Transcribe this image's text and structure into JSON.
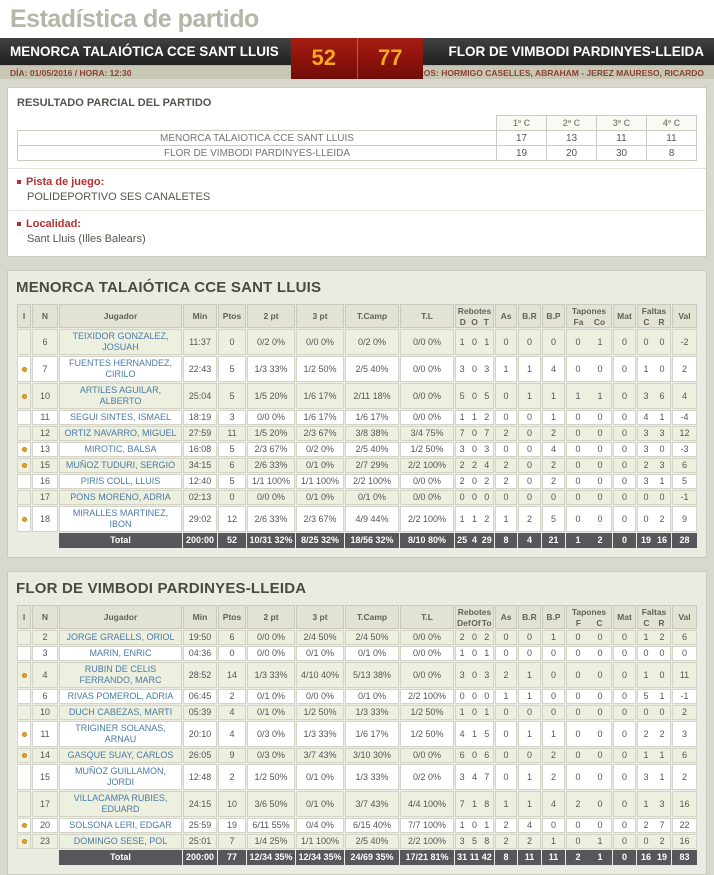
{
  "page_title": "Estadística de partido",
  "colors": {
    "score_box_bg": "#8c120c",
    "score_text": "#f4a71f",
    "accent_red": "#b53030",
    "player_link_blue": "#4a7ba6",
    "total_row_bg": "#57575b",
    "starter_dot": "#f0a21d"
  },
  "scoreboard": {
    "home_team": "MENORCA TALAIÓTICA CCE SANT LLUIS",
    "home_score": "52",
    "away_score": "77",
    "away_team": "FLOR DE VIMBODI PARDINYES-LLEIDA"
  },
  "meta": {
    "datetime": "DÍA: 01/05/2016 / HORA: 12:30",
    "referees": "ÁRBITROS: HORMIGO CASELLES, ABRAHAM - JEREZ MAURESO, RICARDO"
  },
  "partials": {
    "title": "RESULTADO PARCIAL DEL PARTIDO",
    "quarter_headers": [
      "1º C",
      "2º C",
      "3º C",
      "4º C"
    ],
    "rows": [
      {
        "team": "MENORCA TALAIOTICA CCE SANT LLUIS",
        "quarters": [
          "17",
          "13",
          "11",
          "11"
        ]
      },
      {
        "team": "FLOR DE VIMBODI PARDINYES-LLEIDA",
        "quarters": [
          "19",
          "20",
          "30",
          "8"
        ]
      }
    ]
  },
  "venue": {
    "label": "Pista de juego:",
    "value": "POLIDEPORTIVO SES CANALETES"
  },
  "locality": {
    "label": "Localidad:",
    "value": "Sant Lluis (Illes Balears)"
  },
  "team1": {
    "title": "MENORCA TALAIÓTICA CCE SANT LLUIS",
    "headers": {
      "i": "I",
      "n": "N",
      "player": "Jugador",
      "min": "Min",
      "ptos": "Ptos",
      "p2": "2 pt",
      "p3": "3 pt",
      "tcamp": "T.Camp",
      "tl": "T.L",
      "reb": "Rebotes",
      "reb_sub": [
        "D",
        "O",
        "T"
      ],
      "as": "As",
      "br": "B.R",
      "bp": "B.P",
      "tap": "Tapones",
      "tap_sub": [
        "Fa",
        "Co"
      ],
      "mat": "Mat",
      "fal": "Faltas",
      "fal_sub": [
        "C",
        "R"
      ],
      "val": "Val"
    },
    "rows": [
      {
        "starter": false,
        "n": "6",
        "name": "TEIXIDOR GONZALEZ, JOSUAH",
        "min": "11:37",
        "ptos": "0",
        "p2": "0/2 0%",
        "p3": "0/0 0%",
        "tc": "0/2 0%",
        "tl": "0/0 0%",
        "rd": "1",
        "ro": "0",
        "rt": "1",
        "as": "0",
        "br": "0",
        "bp": "0",
        "tf": "0",
        "tco": "1",
        "mat": "0",
        "fc": "0",
        "fr": "0",
        "val": "-2"
      },
      {
        "starter": true,
        "n": "7",
        "name": "FUENTES HERNANDEZ, CIRILO",
        "min": "22:43",
        "ptos": "5",
        "p2": "1/3 33%",
        "p3": "1/2 50%",
        "tc": "2/5 40%",
        "tl": "0/0 0%",
        "rd": "3",
        "ro": "0",
        "rt": "3",
        "as": "1",
        "br": "1",
        "bp": "4",
        "tf": "0",
        "tco": "0",
        "mat": "0",
        "fc": "1",
        "fr": "0",
        "val": "2"
      },
      {
        "starter": true,
        "n": "10",
        "name": "ARTILES AGUILAR, ALBERTO",
        "min": "25:04",
        "ptos": "5",
        "p2": "1/5 20%",
        "p3": "1/6 17%",
        "tc": "2/11 18%",
        "tl": "0/0 0%",
        "rd": "5",
        "ro": "0",
        "rt": "5",
        "as": "0",
        "br": "1",
        "bp": "1",
        "tf": "1",
        "tco": "1",
        "mat": "0",
        "fc": "3",
        "fr": "6",
        "val": "4"
      },
      {
        "starter": false,
        "n": "11",
        "name": "SEGUI SINTES, ISMAEL",
        "min": "18:19",
        "ptos": "3",
        "p2": "0/0 0%",
        "p3": "1/6 17%",
        "tc": "1/6 17%",
        "tl": "0/0 0%",
        "rd": "1",
        "ro": "1",
        "rt": "2",
        "as": "0",
        "br": "0",
        "bp": "1",
        "tf": "0",
        "tco": "0",
        "mat": "0",
        "fc": "4",
        "fr": "1",
        "val": "-4"
      },
      {
        "starter": false,
        "n": "12",
        "name": "ORTIZ NAVARRO, MIGUEL",
        "min": "27:59",
        "ptos": "11",
        "p2": "1/5 20%",
        "p3": "2/3 67%",
        "tc": "3/8 38%",
        "tl": "3/4 75%",
        "rd": "7",
        "ro": "0",
        "rt": "7",
        "as": "2",
        "br": "0",
        "bp": "2",
        "tf": "0",
        "tco": "0",
        "mat": "0",
        "fc": "3",
        "fr": "3",
        "val": "12"
      },
      {
        "starter": true,
        "n": "13",
        "name": "MIROTIC, BALSA",
        "min": "16:08",
        "ptos": "5",
        "p2": "2/3 67%",
        "p3": "0/2 0%",
        "tc": "2/5 40%",
        "tl": "1/2 50%",
        "rd": "3",
        "ro": "0",
        "rt": "3",
        "as": "0",
        "br": "0",
        "bp": "4",
        "tf": "0",
        "tco": "0",
        "mat": "0",
        "fc": "3",
        "fr": "0",
        "val": "-3"
      },
      {
        "starter": true,
        "n": "15",
        "name": "MUÑOZ TUDURI, SERGIO",
        "min": "34:15",
        "ptos": "6",
        "p2": "2/6 33%",
        "p3": "0/1 0%",
        "tc": "2/7 29%",
        "tl": "2/2 100%",
        "rd": "2",
        "ro": "2",
        "rt": "4",
        "as": "2",
        "br": "0",
        "bp": "2",
        "tf": "0",
        "tco": "0",
        "mat": "0",
        "fc": "2",
        "fr": "3",
        "val": "6"
      },
      {
        "starter": false,
        "n": "16",
        "name": "PIRIS COLL, LLUIS",
        "min": "12:40",
        "ptos": "5",
        "p2": "1/1 100%",
        "p3": "1/1 100%",
        "tc": "2/2 100%",
        "tl": "0/0 0%",
        "rd": "2",
        "ro": "0",
        "rt": "2",
        "as": "2",
        "br": "0",
        "bp": "2",
        "tf": "0",
        "tco": "0",
        "mat": "0",
        "fc": "3",
        "fr": "1",
        "val": "5"
      },
      {
        "starter": false,
        "n": "17",
        "name": "PONS MORENO, ADRIA",
        "min": "02:13",
        "ptos": "0",
        "p2": "0/0 0%",
        "p3": "0/1 0%",
        "tc": "0/1 0%",
        "tl": "0/0 0%",
        "rd": "0",
        "ro": "0",
        "rt": "0",
        "as": "0",
        "br": "0",
        "bp": "0",
        "tf": "0",
        "tco": "0",
        "mat": "0",
        "fc": "0",
        "fr": "0",
        "val": "-1"
      },
      {
        "starter": true,
        "n": "18",
        "name": "MIRALLES MARTINEZ, IBON",
        "min": "29:02",
        "ptos": "12",
        "p2": "2/6 33%",
        "p3": "2/3 67%",
        "tc": "4/9 44%",
        "tl": "2/2 100%",
        "rd": "1",
        "ro": "1",
        "rt": "2",
        "as": "1",
        "br": "2",
        "bp": "5",
        "tf": "0",
        "tco": "0",
        "mat": "0",
        "fc": "0",
        "fr": "2",
        "val": "9"
      }
    ],
    "total": {
      "label": "Total",
      "min": "200:00",
      "ptos": "52",
      "p2": "10/31 32%",
      "p3": "8/25 32%",
      "tc": "18/56 32%",
      "tl": "8/10 80%",
      "rd": "25",
      "ro": "4",
      "rt": "29",
      "as": "8",
      "br": "4",
      "bp": "21",
      "tf": "1",
      "tco": "2",
      "mat": "0",
      "fc": "19",
      "fr": "16",
      "val": "28"
    }
  },
  "team2": {
    "title": "FLOR DE VIMBODI PARDINYES-LLEIDA",
    "headers": {
      "i": "I",
      "n": "N",
      "player": "Jugador",
      "min": "Min",
      "ptos": "Ptos",
      "p2": "2 pt",
      "p3": "3 pt",
      "tcamp": "T.Camp",
      "tl": "T.L",
      "reb": "Rebotes",
      "reb_sub": [
        "Def",
        "Of",
        "To"
      ],
      "as": "As",
      "br": "B.R",
      "bp": "B.P",
      "tap": "Tapones",
      "tap_sub": [
        "F",
        "C"
      ],
      "mat": "Mat",
      "fal": "Faltas",
      "fal_sub": [
        "C",
        "R"
      ],
      "val": "Val"
    },
    "rows": [
      {
        "starter": false,
        "n": "2",
        "name": "JORGE GRAELLS, ORIOL",
        "min": "19:50",
        "ptos": "6",
        "p2": "0/0 0%",
        "p3": "2/4 50%",
        "tc": "2/4 50%",
        "tl": "0/0 0%",
        "rd": "2",
        "ro": "0",
        "rt": "2",
        "as": "0",
        "br": "0",
        "bp": "1",
        "tf": "0",
        "tco": "0",
        "mat": "0",
        "fc": "1",
        "fr": "2",
        "val": "6"
      },
      {
        "starter": false,
        "n": "3",
        "name": "MARIN, ENRIC",
        "min": "04:36",
        "ptos": "0",
        "p2": "0/0 0%",
        "p3": "0/1 0%",
        "tc": "0/1 0%",
        "tl": "0/0 0%",
        "rd": "1",
        "ro": "0",
        "rt": "1",
        "as": "0",
        "br": "0",
        "bp": "0",
        "tf": "0",
        "tco": "0",
        "mat": "0",
        "fc": "0",
        "fr": "0",
        "val": "0"
      },
      {
        "starter": true,
        "n": "4",
        "name": "RUBIN DE CELIS FERRANDO, MARC",
        "min": "28:52",
        "ptos": "14",
        "p2": "1/3 33%",
        "p3": "4/10 40%",
        "tc": "5/13 38%",
        "tl": "0/0 0%",
        "rd": "3",
        "ro": "0",
        "rt": "3",
        "as": "2",
        "br": "1",
        "bp": "0",
        "tf": "0",
        "tco": "0",
        "mat": "0",
        "fc": "1",
        "fr": "0",
        "val": "11"
      },
      {
        "starter": false,
        "n": "6",
        "name": "RIVAS POMEROL, ADRIA",
        "min": "06:45",
        "ptos": "2",
        "p2": "0/1 0%",
        "p3": "0/0 0%",
        "tc": "0/1 0%",
        "tl": "2/2 100%",
        "rd": "0",
        "ro": "0",
        "rt": "0",
        "as": "1",
        "br": "1",
        "bp": "0",
        "tf": "0",
        "tco": "0",
        "mat": "0",
        "fc": "5",
        "fr": "1",
        "val": "-1"
      },
      {
        "starter": false,
        "n": "10",
        "name": "DUCH CABEZAS, MARTI",
        "min": "05:39",
        "ptos": "4",
        "p2": "0/1 0%",
        "p3": "1/2 50%",
        "tc": "1/3 33%",
        "tl": "1/2 50%",
        "rd": "1",
        "ro": "0",
        "rt": "1",
        "as": "0",
        "br": "0",
        "bp": "0",
        "tf": "0",
        "tco": "0",
        "mat": "0",
        "fc": "0",
        "fr": "0",
        "val": "2"
      },
      {
        "starter": true,
        "n": "11",
        "name": "TRIGINER SOLANAS, ARNAU",
        "min": "20:10",
        "ptos": "4",
        "p2": "0/3 0%",
        "p3": "1/3 33%",
        "tc": "1/6 17%",
        "tl": "1/2 50%",
        "rd": "4",
        "ro": "1",
        "rt": "5",
        "as": "0",
        "br": "1",
        "bp": "1",
        "tf": "0",
        "tco": "0",
        "mat": "0",
        "fc": "2",
        "fr": "2",
        "val": "3"
      },
      {
        "starter": true,
        "n": "14",
        "name": "GASQUE SUAY, CARLOS",
        "min": "26:05",
        "ptos": "9",
        "p2": "0/3 0%",
        "p3": "3/7 43%",
        "tc": "3/10 30%",
        "tl": "0/0 0%",
        "rd": "6",
        "ro": "0",
        "rt": "6",
        "as": "0",
        "br": "0",
        "bp": "2",
        "tf": "0",
        "tco": "0",
        "mat": "0",
        "fc": "1",
        "fr": "1",
        "val": "6"
      },
      {
        "starter": false,
        "n": "15",
        "name": "MUÑOZ GUILLAMON, JORDI",
        "min": "12:48",
        "ptos": "2",
        "p2": "1/2 50%",
        "p3": "0/1 0%",
        "tc": "1/3 33%",
        "tl": "0/2 0%",
        "rd": "3",
        "ro": "4",
        "rt": "7",
        "as": "0",
        "br": "1",
        "bp": "2",
        "tf": "0",
        "tco": "0",
        "mat": "0",
        "fc": "3",
        "fr": "1",
        "val": "2"
      },
      {
        "starter": false,
        "n": "17",
        "name": "VILLACAMPA RUBIES, EDUARD",
        "min": "24:15",
        "ptos": "10",
        "p2": "3/6 50%",
        "p3": "0/1 0%",
        "tc": "3/7 43%",
        "tl": "4/4 100%",
        "rd": "7",
        "ro": "1",
        "rt": "8",
        "as": "1",
        "br": "1",
        "bp": "4",
        "tf": "2",
        "tco": "0",
        "mat": "0",
        "fc": "1",
        "fr": "3",
        "val": "16"
      },
      {
        "starter": true,
        "n": "20",
        "name": "SOLSONA LERI, EDGAR",
        "min": "25:59",
        "ptos": "19",
        "p2": "6/11 55%",
        "p3": "0/4 0%",
        "tc": "6/15 40%",
        "tl": "7/7 100%",
        "rd": "1",
        "ro": "0",
        "rt": "1",
        "as": "2",
        "br": "4",
        "bp": "0",
        "tf": "0",
        "tco": "0",
        "mat": "0",
        "fc": "2",
        "fr": "7",
        "val": "22"
      },
      {
        "starter": true,
        "n": "23",
        "name": "DOMINGO SESE, POL",
        "min": "25:01",
        "ptos": "7",
        "p2": "1/4 25%",
        "p3": "1/1 100%",
        "tc": "2/5 40%",
        "tl": "2/2 100%",
        "rd": "3",
        "ro": "5",
        "rt": "8",
        "as": "2",
        "br": "2",
        "bp": "1",
        "tf": "0",
        "tco": "1",
        "mat": "0",
        "fc": "0",
        "fr": "2",
        "val": "16"
      }
    ],
    "total": {
      "label": "Total",
      "min": "200:00",
      "ptos": "77",
      "p2": "12/34 35%",
      "p3": "12/34 35%",
      "tc": "24/69 35%",
      "tl": "17/21 81%",
      "rd": "31",
      "ro": "11",
      "rt": "42",
      "as": "8",
      "br": "11",
      "bp": "11",
      "tf": "2",
      "tco": "1",
      "mat": "0",
      "fc": "16",
      "fr": "19",
      "val": "83"
    }
  }
}
